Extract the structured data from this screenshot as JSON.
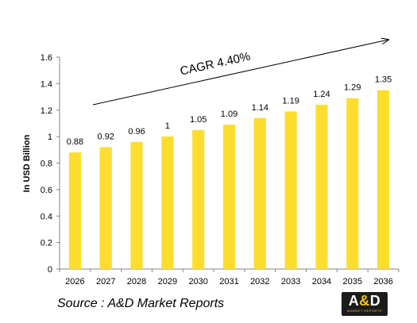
{
  "chart_data": {
    "type": "bar",
    "categories": [
      "2026",
      "2027",
      "2028",
      "2029",
      "2030",
      "2031",
      "2032",
      "2033",
      "2034",
      "2035",
      "2036"
    ],
    "values": [
      0.88,
      0.92,
      0.96,
      1,
      1.05,
      1.09,
      1.14,
      1.19,
      1.24,
      1.29,
      1.35
    ],
    "value_labels": [
      "0.88",
      "0.92",
      "0.96",
      "1",
      "1.05",
      "1.09",
      "1.14",
      "1.19",
      "1.24",
      "1.29",
      "1.35"
    ],
    "yticks": [
      "0",
      "0.2",
      "0.4",
      "0.6",
      "0.8",
      "1",
      "1.2",
      "1.4",
      "1.6"
    ],
    "ylim": [
      0,
      1.6
    ],
    "ylabel": "In USD Billion",
    "xlabel": "",
    "title": "",
    "grid": false,
    "bar_color": "#fddd2e",
    "annotation": "CAGR 4.40%"
  },
  "source": "Source : A&D Market Reports",
  "logo": {
    "main_left": "A",
    "main_amp": "&",
    "main_right": "D",
    "sub": "MARKET REPORTS",
    "accent_color": "#f7c51a"
  }
}
